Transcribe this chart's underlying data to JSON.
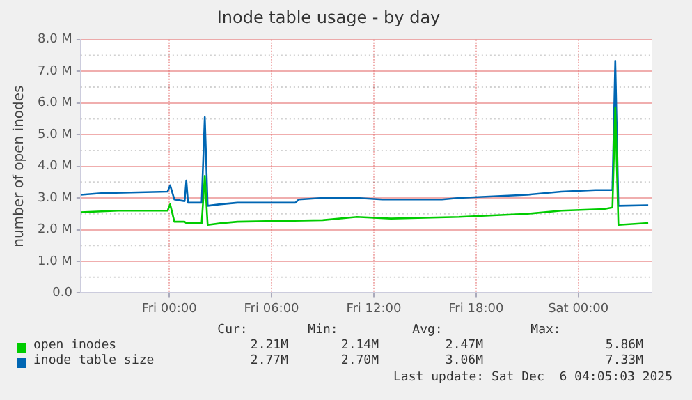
{
  "chart_data": {
    "type": "line",
    "title": "Inode table usage - by day",
    "ylabel": "number of open inodes",
    "xlim": [
      "2025-12-04T18:48",
      "2025-12-06T04:18"
    ],
    "xticks": [
      {
        "value": "2025-12-05T00:00",
        "label": "Fri 00:00"
      },
      {
        "value": "2025-12-05T06:00",
        "label": "Fri 06:00"
      },
      {
        "value": "2025-12-05T12:00",
        "label": "Fri 12:00"
      },
      {
        "value": "2025-12-05T18:00",
        "label": "Fri 18:00"
      },
      {
        "value": "2025-12-06T00:00",
        "label": "Sat 00:00"
      }
    ],
    "ylim": [
      0,
      8
    ],
    "yticks": [
      {
        "value": 0,
        "label": "0.0"
      },
      {
        "value": 1,
        "label": "1.0 M"
      },
      {
        "value": 2,
        "label": "2.0 M"
      },
      {
        "value": 3,
        "label": "3.0 M"
      },
      {
        "value": 4,
        "label": "4.0 M"
      },
      {
        "value": 5,
        "label": "5.0 M"
      },
      {
        "value": 6,
        "label": "6.0 M"
      },
      {
        "value": 7,
        "label": "7.0 M"
      },
      {
        "value": 8,
        "label": "8.0 M"
      }
    ],
    "grid": true,
    "legend": "bottom",
    "marker": "none",
    "series": [
      {
        "name": "open inodes",
        "color": "#00cc00",
        "x": [
          "2025-12-04T18:48",
          "2025-12-04T21:00",
          "2025-12-04T23:54",
          "2025-12-05T00:03",
          "2025-12-05T00:18",
          "2025-12-05T00:54",
          "2025-12-05T01:00",
          "2025-12-05T01:54",
          "2025-12-05T02:05",
          "2025-12-05T02:15",
          "2025-12-05T03:00",
          "2025-12-05T04:00",
          "2025-12-05T09:00",
          "2025-12-05T11:00",
          "2025-12-05T13:00",
          "2025-12-05T17:00",
          "2025-12-05T21:00",
          "2025-12-05T23:00",
          "2025-12-06T01:30",
          "2025-12-06T02:00",
          "2025-12-06T02:10",
          "2025-12-06T02:21",
          "2025-12-06T04:06"
        ],
        "values": [
          2.55,
          2.6,
          2.6,
          2.8,
          2.25,
          2.25,
          2.2,
          2.2,
          3.7,
          2.15,
          2.2,
          2.25,
          2.3,
          2.4,
          2.35,
          2.4,
          2.5,
          2.6,
          2.65,
          2.7,
          5.86,
          2.15,
          2.21
        ]
      },
      {
        "name": "inode table size",
        "color": "#0066b3",
        "x": [
          "2025-12-04T18:48",
          "2025-12-04T20:00",
          "2025-12-04T23:54",
          "2025-12-05T00:03",
          "2025-12-05T00:18",
          "2025-12-05T00:54",
          "2025-12-05T01:00",
          "2025-12-05T01:06",
          "2025-12-05T01:54",
          "2025-12-05T02:05",
          "2025-12-05T02:15",
          "2025-12-05T03:00",
          "2025-12-05T04:00",
          "2025-12-05T07:24",
          "2025-12-05T07:36",
          "2025-12-05T09:00",
          "2025-12-05T11:00",
          "2025-12-05T12:30",
          "2025-12-05T16:00",
          "2025-12-05T17:00",
          "2025-12-05T19:00",
          "2025-12-05T21:00",
          "2025-12-05T23:00",
          "2025-12-06T01:00",
          "2025-12-06T02:00",
          "2025-12-06T02:10",
          "2025-12-06T02:21",
          "2025-12-06T04:06"
        ],
        "values": [
          3.1,
          3.15,
          3.2,
          3.4,
          2.95,
          2.9,
          3.55,
          2.85,
          2.85,
          5.55,
          2.75,
          2.8,
          2.85,
          2.85,
          2.95,
          3.0,
          3.0,
          2.95,
          2.95,
          3.0,
          3.05,
          3.1,
          3.2,
          3.25,
          3.25,
          7.33,
          2.75,
          2.77
        ]
      }
    ],
    "annotations": [
      "Cur:",
      "Min:",
      "Avg:",
      "Max:",
      "2.21M",
      "2.14M",
      "2.47M",
      "5.86M",
      "2.77M",
      "2.70M",
      "3.06M",
      "7.33M",
      "Last update: Sat Dec  6 04:05:03 2025"
    ]
  }
}
